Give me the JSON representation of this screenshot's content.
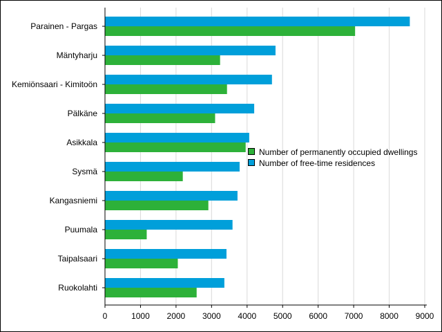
{
  "chart_data": {
    "type": "bar",
    "orientation": "horizontal",
    "title": "",
    "xlabel": "",
    "ylabel": "",
    "categories": [
      "Parainen - Pargas",
      "Mäntyharju",
      "Kemiönsaari - Kimitoön",
      "Pälkäne",
      "Asikkala",
      "Sysmä",
      "Kangasniemi",
      "Puumala",
      "Taipalsaari",
      "Ruokolahti"
    ],
    "series": [
      {
        "name": "Number of free-time residences",
        "color": "#009FDA",
        "values": [
          8580,
          4800,
          4700,
          4200,
          4060,
          3790,
          3730,
          3590,
          3420,
          3360
        ]
      },
      {
        "name": "Number of permanently occupied dwellings",
        "color": "#2DB139",
        "values": [
          7040,
          3240,
          3435,
          3100,
          3960,
          2190,
          2910,
          1175,
          2050,
          2580
        ]
      }
    ],
    "legend_order": [
      "Number of permanently occupied dwellings",
      "Number of free-time residences"
    ],
    "xlim": [
      0,
      9000
    ],
    "xticks": [
      "0",
      "1000",
      "2000",
      "3000",
      "4000",
      "5000",
      "6000",
      "7000",
      "8000",
      "9000"
    ],
    "grid": true,
    "legend_position": "center-right"
  }
}
